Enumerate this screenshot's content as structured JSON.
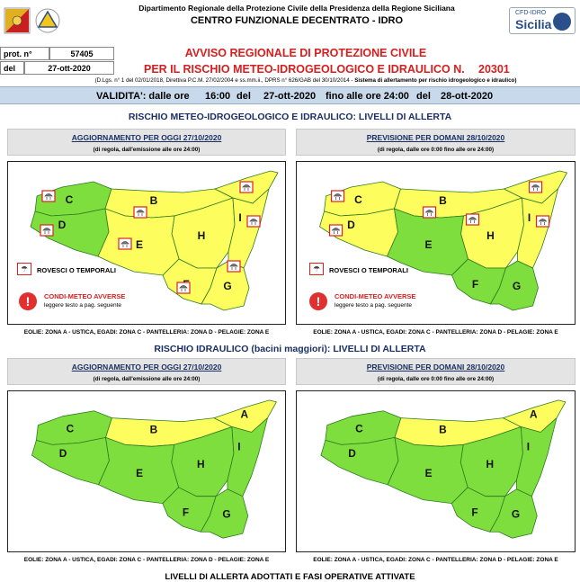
{
  "header": {
    "department": "Dipartimento Regionale della Protezione Civile della Presidenza della Regione Siciliana",
    "center": "CENTRO FUNZIONALE DECENTRATO - IDRO",
    "cfd_logo_line1": "CFD-IDRO",
    "cfd_logo_line2": "Sicilia"
  },
  "protocol": {
    "prot_label": "prot. n°",
    "prot_value": "57405",
    "date_label": "del",
    "date_value": "27-ott-2020"
  },
  "title": {
    "line1": "AVVISO REGIONALE DI PROTEZIONE CIVILE",
    "line2": "PER IL RISCHIO METEO-IDROGEOLOGICO E IDRAULICO N.",
    "number": "20301",
    "legal_normal": "(D.Lgs. n° 1 del 02/01/2018, Direttiva P.C.M. 27/02/2004 e ss.mm.ii., DPRS n° 626/GAB del 30/10/2014 -",
    "legal_bold": "Sistema di allertamento per rischio idrogeologico e idraulico)"
  },
  "validity": {
    "label": "VALIDITA': dalle ore",
    "from_time": "16:00",
    "del1": "del",
    "from_date": "27-ott-2020",
    "until_label": "fino alle ore 24:00",
    "del2": "del",
    "to_date": "28-ott-2020"
  },
  "sections": {
    "meteo_title": "RISCHIO METEO-IDROGEOLOGICO E IDRAULICO: LIVELLI DI ALLERTA",
    "idraulico_title": "RISCHIO IDRAULICO (bacini maggiori): LIVELLI DI ALLERTA",
    "bottom_title": "LIVELLI DI ALLERTA ADOTTATI E FASI OPERATIVE ATTIVATE"
  },
  "panels": {
    "today_title": "AGGIORNAMENTO PER OGGI 27/10/2020",
    "today_sub": "(di regola, dall'emissione alle ore 24:00)",
    "tomorrow_title": "PREVISIONE PER DOMANI 28/10/2020",
    "tomorrow_sub": "(di regola, dalle ore 0:00 fino alle ore 24:00)"
  },
  "legend": {
    "showers": "ROVESCI O TEMPORALI",
    "adverse_title": "CONDI-METEO AVVERSE",
    "adverse_sub": "leggere testo a pag. seguente"
  },
  "islands_note": "EOLIE: ZONA A - USTICA, EGADI: ZONA C - PANTELLERIA: ZONA D - PELAGIE: ZONA E",
  "zone_labels": [
    "A",
    "B",
    "C",
    "D",
    "E",
    "F",
    "G",
    "H",
    "I"
  ],
  "alert_colors": {
    "yellow": "#fdfd5e",
    "green": "#7ede3e"
  },
  "maps": {
    "meteo_today": {
      "A": "yellow",
      "B": "yellow",
      "C": "green",
      "D": "green",
      "E": "yellow",
      "F": "yellow",
      "G": "yellow",
      "H": "yellow",
      "I": "yellow"
    },
    "meteo_tomorrow": {
      "A": "yellow",
      "B": "yellow",
      "C": "yellow",
      "D": "yellow",
      "E": "green",
      "F": "green",
      "G": "green",
      "H": "yellow",
      "I": "yellow"
    },
    "idro_today": {
      "A": "yellow",
      "B": "yellow",
      "C": "green",
      "D": "green",
      "E": "green",
      "F": "green",
      "G": "green",
      "H": "green",
      "I": "green"
    },
    "idro_tomorrow": {
      "A": "yellow",
      "B": "yellow",
      "C": "green",
      "D": "green",
      "E": "green",
      "F": "green",
      "G": "green",
      "H": "green",
      "I": "green"
    }
  }
}
